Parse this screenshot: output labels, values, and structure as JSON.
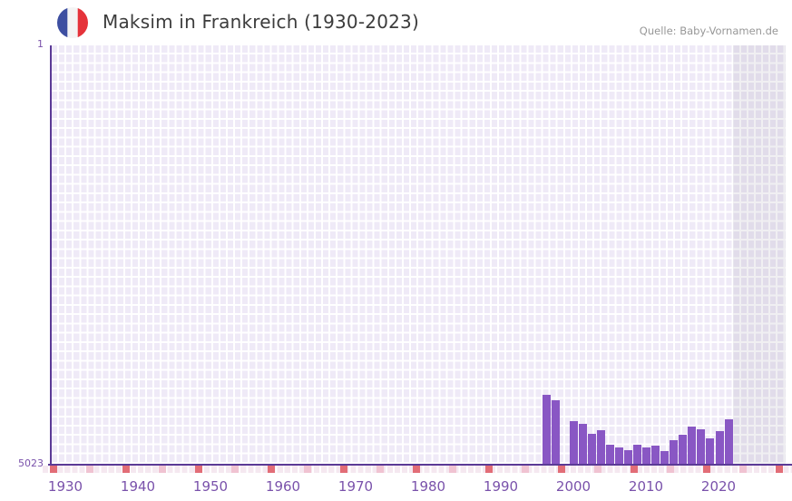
{
  "header": {
    "title": "Maksim in Frankreich (1930-2023)",
    "source": "Quelle: Baby-Vornamen.de",
    "flag_icon": "france-flag-icon",
    "flag_colors": {
      "blue": "#3d4fa1",
      "white": "#f4f4f4",
      "red": "#e5333a"
    }
  },
  "chart_data": {
    "type": "bar",
    "title": "Maksim in Frankreich (1930-2023)",
    "xlabel": "",
    "ylabel": "Platz",
    "y_axis": {
      "top_label": "1",
      "bottom_label": "5023",
      "min": 1,
      "max": 5023,
      "inverted": true,
      "note": "rank axis, rank 1 at top; taller bar = better rank"
    },
    "x_axis": {
      "start_year": 1930,
      "end_year": 2023,
      "tick_labels": [
        "1930",
        "1940",
        "1950",
        "1960",
        "1970",
        "1980",
        "1990",
        "2000",
        "2010",
        "2020"
      ],
      "decade_tick_years": [
        1930,
        1940,
        1950,
        1960,
        1970,
        1980,
        1990,
        2000,
        2010,
        2020,
        2030
      ],
      "half_decade_tick_years": [
        1935,
        1945,
        1955,
        1965,
        1975,
        1985,
        1995,
        2005,
        2015,
        2025
      ]
    },
    "grid": true,
    "legend": "none",
    "highlight_band": {
      "meaning": "most recent years shaded",
      "from_year": 2021,
      "to_year": 2023
    },
    "bars": [
      {
        "year": 1997,
        "rank": 4195
      },
      {
        "year": 1998,
        "rank": 4260
      },
      {
        "year": 1999,
        "rank": null
      },
      {
        "year": 2000,
        "rank": 4510
      },
      {
        "year": 2001,
        "rank": 4545
      },
      {
        "year": 2002,
        "rank": 4665
      },
      {
        "year": 2003,
        "rank": 4620
      },
      {
        "year": 2004,
        "rank": 4795
      },
      {
        "year": 2005,
        "rank": 4825
      },
      {
        "year": 2006,
        "rank": 4860
      },
      {
        "year": 2007,
        "rank": 4795
      },
      {
        "year": 2008,
        "rank": 4825
      },
      {
        "year": 2009,
        "rank": 4805
      },
      {
        "year": 2010,
        "rank": 4870
      },
      {
        "year": 2011,
        "rank": 4740
      },
      {
        "year": 2012,
        "rank": 4675
      },
      {
        "year": 2013,
        "rank": 4575
      },
      {
        "year": 2014,
        "rank": 4610
      },
      {
        "year": 2015,
        "rank": 4720
      },
      {
        "year": 2016,
        "rank": 4630
      },
      {
        "year": 2017,
        "rank": 4490
      }
    ],
    "colors": {
      "bar": "#8957c4",
      "axis_line": "#5b3a96",
      "grid_cell": "#efeaf7",
      "axis_label": "#7a52ab",
      "tick_decade": "#e26d77",
      "tick_half_decade": "#f0c3d2",
      "tick_year": "#f5e8f0",
      "band_overlay": "rgba(104,98,128,0.10)",
      "title_text": "#3c3c3c",
      "source_text": "#979797"
    }
  }
}
